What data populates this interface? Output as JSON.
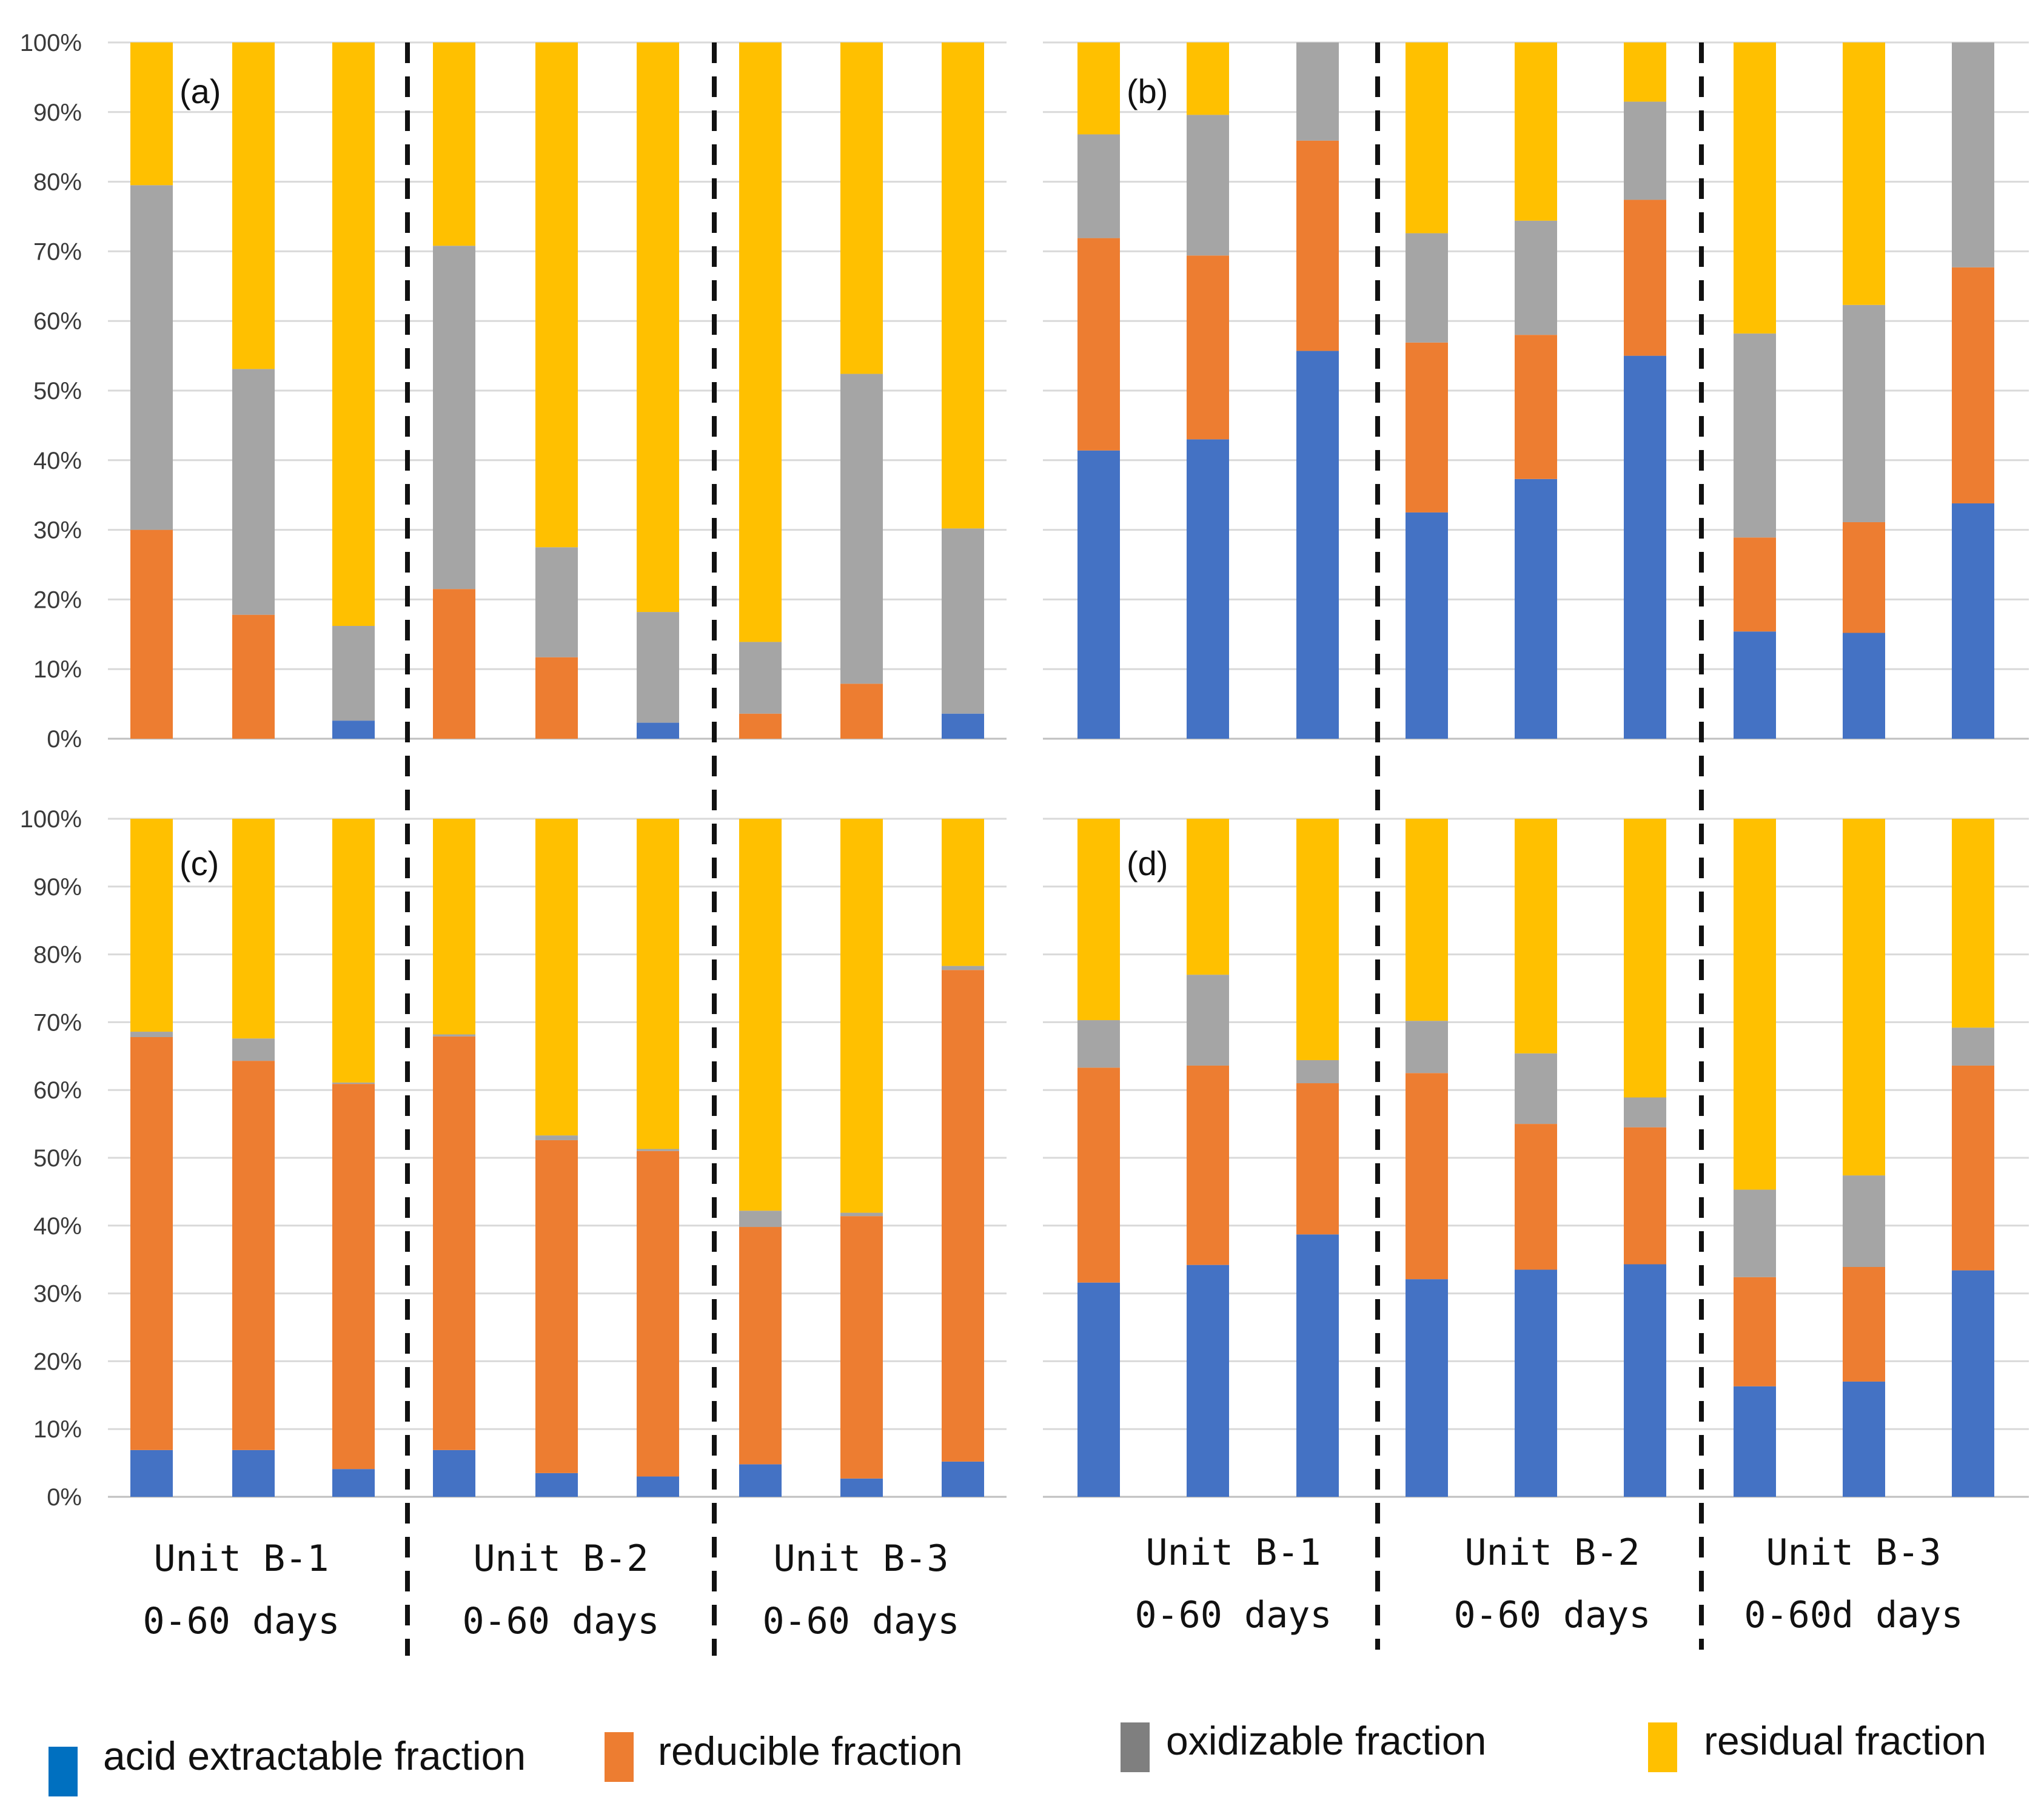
{
  "chart_data": {
    "type": "bar",
    "stacked": true,
    "percent": true,
    "y_ticks": [
      "0%",
      "10%",
      "20%",
      "30%",
      "40%",
      "50%",
      "60%",
      "70%",
      "80%",
      "90%",
      "100%"
    ],
    "ylim": [
      0,
      100
    ],
    "series": [
      {
        "key": "acid",
        "name": "acid extractable fraction",
        "color": "#4472C4",
        "legend_color": "#0070C0"
      },
      {
        "key": "reducible",
        "name": "reducible fraction",
        "color": "#ED7D31",
        "legend_color": "#ED7D31"
      },
      {
        "key": "oxidizable",
        "name": "oxidizable fraction",
        "color": "#A5A5A5",
        "legend_color": "#7F7F7F"
      },
      {
        "key": "residual",
        "name": "residual fraction",
        "color": "#FFC000",
        "legend_color": "#FFC000"
      }
    ],
    "panels": [
      {
        "label": "(a)",
        "groups": [
          {
            "bars": [
              [
                0,
                30,
                49.5,
                20.5
              ],
              [
                0,
                17.8,
                35.3,
                46.9
              ],
              [
                2.6,
                0,
                13.6,
                83.8
              ]
            ]
          },
          {
            "bars": [
              [
                0,
                21.5,
                49.3,
                29.2
              ],
              [
                0,
                11.7,
                15.8,
                72.5
              ],
              [
                2.3,
                0,
                15.9,
                81.8
              ]
            ]
          },
          {
            "bars": [
              [
                0,
                3.6,
                10.3,
                86.1
              ],
              [
                0,
                7.9,
                44.5,
                47.6
              ],
              [
                3.6,
                0,
                26.6,
                69.8
              ]
            ]
          }
        ]
      },
      {
        "label": "(b)",
        "groups": [
          {
            "bars": [
              [
                41.4,
                30.5,
                14.9,
                13.2
              ],
              [
                43,
                26.4,
                20.2,
                10.4
              ],
              [
                55.7,
                30.2,
                14.1,
                0
              ]
            ]
          },
          {
            "bars": [
              [
                32.5,
                24.4,
                15.7,
                27.4
              ],
              [
                37.3,
                20.7,
                16.4,
                25.6
              ],
              [
                55,
                22.4,
                14.1,
                8.5
              ]
            ]
          },
          {
            "bars": [
              [
                15.4,
                13.5,
                29.3,
                41.8
              ],
              [
                15.2,
                15.9,
                31.2,
                37.7
              ],
              [
                33.8,
                33.9,
                32.3,
                0
              ]
            ]
          }
        ]
      },
      {
        "label": "(c)",
        "groups": [
          {
            "bars": [
              [
                6.9,
                60.9,
                0.8,
                31.4
              ],
              [
                6.9,
                57.4,
                3.3,
                32.4
              ],
              [
                4.1,
                56.8,
                0.2,
                38.9
              ]
            ]
          },
          {
            "bars": [
              [
                6.9,
                61,
                0.3,
                31.8
              ],
              [
                3.5,
                49.1,
                0.7,
                46.7
              ],
              [
                3,
                48,
                0.3,
                48.7
              ]
            ]
          },
          {
            "bars": [
              [
                4.8,
                35,
                2.4,
                57.8
              ],
              [
                2.7,
                38.7,
                0.5,
                58.1
              ],
              [
                5.2,
                72.5,
                0.6,
                21.7
              ]
            ]
          }
        ]
      },
      {
        "label": "(d)",
        "groups": [
          {
            "bars": [
              [
                31.6,
                31.7,
                7,
                29.7
              ],
              [
                34.2,
                29.4,
                13.4,
                23
              ],
              [
                38.7,
                22.3,
                3.4,
                35.6
              ]
            ]
          },
          {
            "bars": [
              [
                32.1,
                30.4,
                7.7,
                29.8
              ],
              [
                33.5,
                21.5,
                10.4,
                34.6
              ],
              [
                34.3,
                20.2,
                4.4,
                41.1
              ]
            ]
          },
          {
            "bars": [
              [
                16.3,
                16.1,
                12.9,
                54.7
              ],
              [
                17,
                16.9,
                13.5,
                52.6
              ],
              [
                33.4,
                30.2,
                5.6,
                30.8
              ]
            ]
          }
        ]
      }
    ],
    "group_labels_left": [
      {
        "line1": "Unit B-1",
        "line2": "0-60 days"
      },
      {
        "line1": "Unit B-2",
        "line2": "0-60 days"
      },
      {
        "line1": "Unit B-3",
        "line2": "0-60 days"
      }
    ],
    "group_labels_right": [
      {
        "line1": "Unit B-1",
        "line2": "0-60 days"
      },
      {
        "line1": "Unit B-2",
        "line2": "0-60 days"
      },
      {
        "line1": "Unit B-3",
        "line2": "0-60d days"
      }
    ]
  }
}
